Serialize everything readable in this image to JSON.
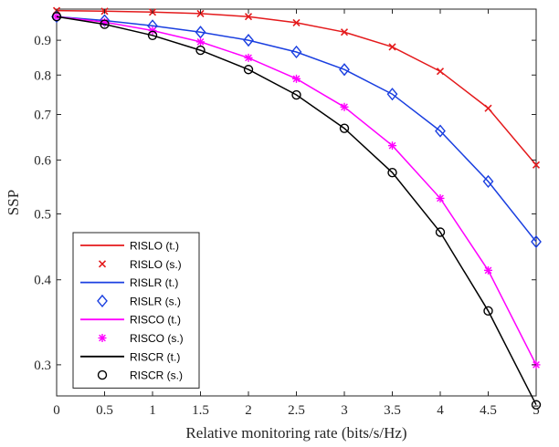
{
  "chart_data": {
    "type": "line",
    "xlabel": "Relative monitoring rate (bits/s/Hz)",
    "ylabel": "SSP",
    "yscale": "log",
    "xlim": [
      0,
      5
    ],
    "ylim": [
      0.27,
      1.0
    ],
    "x_ticks": [
      0,
      0.5,
      1,
      1.5,
      2,
      2.5,
      3,
      3.5,
      4,
      4.5,
      5
    ],
    "x_tick_labels": [
      "0",
      "0.5",
      "1",
      "1.5",
      "2",
      "2.5",
      "3",
      "3.5",
      "4",
      "4.5",
      "5"
    ],
    "y_ticks": [
      0.3,
      0.4,
      0.5,
      0.6,
      0.7,
      0.8,
      0.9
    ],
    "y_tick_labels": [
      "0.3",
      "0.4",
      "0.5",
      "0.6",
      "0.7",
      "0.8",
      "0.9"
    ],
    "grid": false,
    "legend_position": "bottom-left",
    "x": [
      0,
      0.5,
      1,
      1.5,
      2,
      2.5,
      3,
      3.5,
      4,
      4.5,
      5
    ],
    "series": [
      {
        "name": "RISLO",
        "color": "#e41a1c",
        "marker": "x",
        "values": [
          0.995,
          0.993,
          0.99,
          0.985,
          0.975,
          0.955,
          0.925,
          0.88,
          0.81,
          0.715,
          0.59
        ]
      },
      {
        "name": "RISLR",
        "color": "#1a3fe0",
        "marker": "diamond",
        "values": [
          0.975,
          0.962,
          0.945,
          0.925,
          0.9,
          0.865,
          0.815,
          0.75,
          0.662,
          0.558,
          0.455
        ]
      },
      {
        "name": "RISCO",
        "color": "#ff00ff",
        "marker": "asterisk",
        "values": [
          0.975,
          0.957,
          0.93,
          0.895,
          0.848,
          0.79,
          0.718,
          0.63,
          0.527,
          0.413,
          0.3
        ]
      },
      {
        "name": "RISCR",
        "color": "#000000",
        "marker": "circle",
        "values": [
          0.975,
          0.95,
          0.915,
          0.87,
          0.815,
          0.748,
          0.668,
          0.575,
          0.47,
          0.36,
          0.262
        ]
      }
    ],
    "legend": [
      {
        "label": "RISLO (t.)",
        "series": 0,
        "style": "line"
      },
      {
        "label": "RISLO (s.)",
        "series": 0,
        "style": "marker"
      },
      {
        "label": "RISLR (t.)",
        "series": 1,
        "style": "line"
      },
      {
        "label": "RISLR (s.)",
        "series": 1,
        "style": "marker"
      },
      {
        "label": "RISCO (t.)",
        "series": 2,
        "style": "line"
      },
      {
        "label": "RISCO (s.)",
        "series": 2,
        "style": "marker"
      },
      {
        "label": "RISCR (t.)",
        "series": 3,
        "style": "line"
      },
      {
        "label": "RISCR (s.)",
        "series": 3,
        "style": "marker"
      }
    ]
  }
}
